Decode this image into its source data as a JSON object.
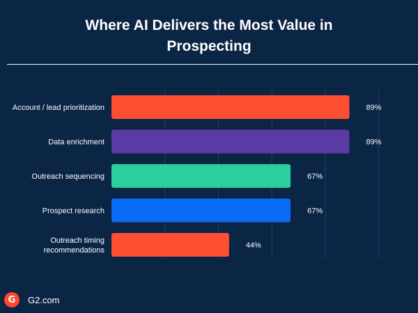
{
  "title_line1": "Where AI Delivers the Most Value in",
  "title_line2": "Prospecting",
  "footer": {
    "logo_text": "G",
    "site": "G2.com"
  },
  "chart_data": {
    "type": "bar",
    "orientation": "horizontal",
    "title": "Where AI Delivers the Most Value in Prospecting",
    "categories": [
      "Account / lead prioritization",
      "Data enrichment",
      "Outreach sequencing",
      "Prospect research",
      "Outreach timing recommendations"
    ],
    "category_lines": [
      [
        "Account / lead prioritization"
      ],
      [
        "Data enrichment"
      ],
      [
        "Outreach sequencing"
      ],
      [
        "Prospect research"
      ],
      [
        "Outreach timing",
        "recommendations"
      ]
    ],
    "values": [
      89,
      89,
      67,
      67,
      44
    ],
    "value_labels": [
      "89%",
      "89%",
      "67%",
      "67%",
      "44%"
    ],
    "colors": [
      "#ff4f33",
      "#5b3aa3",
      "#2bcf9f",
      "#0a6cf5",
      "#ff4f33"
    ],
    "xlim": [
      0,
      100
    ],
    "grid": true,
    "xlabel": "",
    "ylabel": ""
  }
}
